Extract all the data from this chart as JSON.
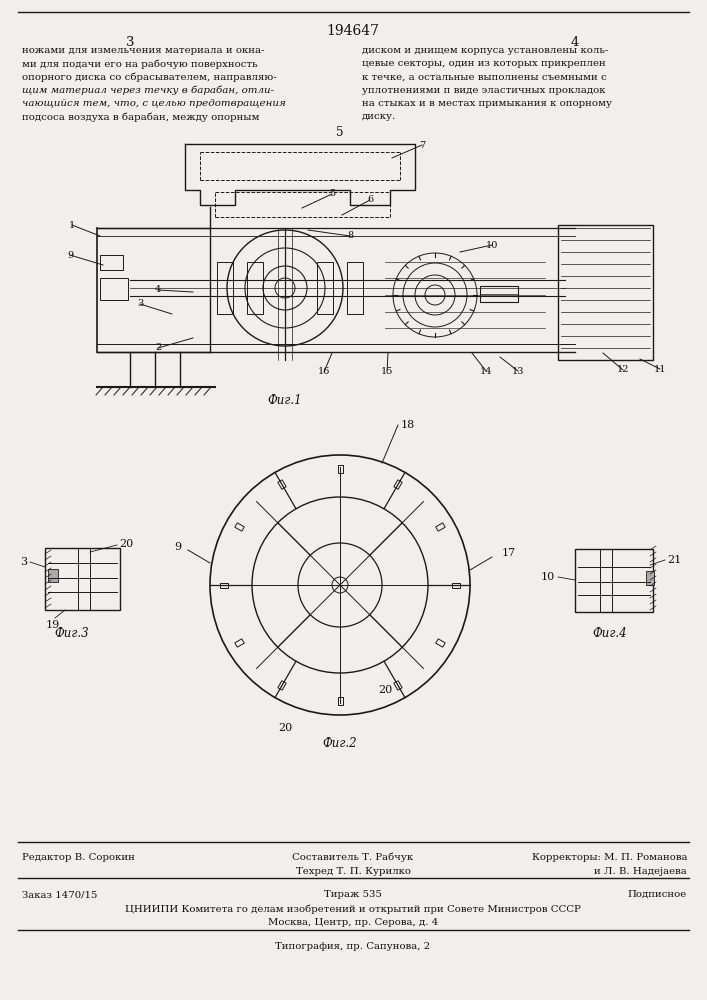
{
  "page_number_center": "194647",
  "page_left": "3",
  "page_right": "4",
  "text_left_lines": [
    "ножами для измельчения материала и окна-",
    "ми для подачи его на рабочую поверхность",
    "опорного диска со сбрасывателем, направляю-",
    "щим материал через течку в барабан, отли-",
    "чающийся тем, что, с целью предотвращения",
    "подсоса воздуха в барабан, между опорным"
  ],
  "text_right_lines": [
    "диском и днищем корпуса установлены коль-",
    "цевые секторы, один из которых прикреплен",
    "к течке, а остальные выполнены съемными с",
    "уплотнениями п виде эластичных прокладок",
    "на стыках и в местах примыкания к опорному",
    "диску."
  ],
  "italic_lines": [
    3,
    4
  ],
  "claim_number": "5",
  "fig1_label": "Фиг.1",
  "fig2_label": "Фиг.2",
  "fig3_label": "Фиг.3",
  "fig4_label": "Фиг.4",
  "footer_editor": "Редактор В. Сорокин",
  "footer_composer": "Составитель Т. Рабчук",
  "footer_techred": "Техред Т. П. Курилко",
  "footer_correctors1": "Корректоры: М. П. Романова",
  "footer_correctors2": "и Л. В. Надеjaева",
  "footer_order": "Заказ 1470/15",
  "footer_tirazh": "Тираж 535",
  "footer_podpisnoe": "Подписное",
  "footer_tsniippi": "ЦНИИПИ Комитета го делам изобретений и открытий при Совете Министров СССР",
  "footer_moscow": "Москва, Центр, пр. Серова, д. 4",
  "footer_tipografia": "Типография, пр. Сапунова, 2",
  "bg_color": "#f0efeb",
  "line_color": "#1a1a1a",
  "text_color": "#111111"
}
